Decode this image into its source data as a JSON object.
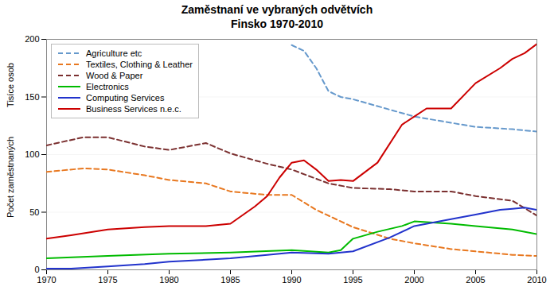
{
  "chart_data": {
    "type": "line",
    "title": "Zaměstnaní ve vybraných odvětvích",
    "subtitle": "Finsko 1970-2010",
    "ylabel": "Počet zaměstnaných",
    "annotations": [
      "Tisíce osob"
    ],
    "xlim": [
      1970,
      2010
    ],
    "xticks": [
      1970,
      1975,
      1980,
      1985,
      1990,
      1995,
      2000,
      2005,
      2010
    ],
    "ylim": [
      0,
      200
    ],
    "yticks": [
      0,
      50,
      100,
      150,
      200
    ],
    "grid": "y",
    "legend": "upper left",
    "series": [
      {
        "name": "Agriculture etc",
        "color": "#6699cc",
        "line_style": "dashed",
        "x": [
          1990,
          1991,
          1992,
          1993,
          1994,
          1995,
          2000,
          2005,
          2008,
          2010
        ],
        "values": [
          195,
          190,
          175,
          155,
          150,
          148,
          133,
          124,
          122,
          120
        ]
      },
      {
        "name": "Textiles, Clothing & Leather",
        "color": "#e87820",
        "line_style": "dashed",
        "x": [
          1970,
          1973,
          1975,
          1978,
          1980,
          1983,
          1985,
          1988,
          1990,
          1992,
          1995,
          1998,
          2000,
          2003,
          2005,
          2008,
          2010
        ],
        "values": [
          85,
          88,
          87,
          82,
          78,
          75,
          68,
          65,
          65,
          52,
          37,
          27,
          23,
          18,
          16,
          13,
          12
        ]
      },
      {
        "name": "Wood & Paper",
        "color": "#7b3030",
        "line_style": "dashed",
        "x": [
          1970,
          1973,
          1975,
          1978,
          1980,
          1983,
          1985,
          1988,
          1990,
          1993,
          1995,
          1998,
          2000,
          2003,
          2005,
          2008,
          2010
        ],
        "values": [
          108,
          115,
          115,
          107,
          104,
          110,
          101,
          92,
          87,
          75,
          71,
          70,
          68,
          68,
          64,
          60,
          47
        ]
      },
      {
        "name": "Electronics",
        "color": "#00bb00",
        "line_style": "solid",
        "x": [
          1970,
          1975,
          1980,
          1985,
          1990,
          1993,
          1994,
          1995,
          1997,
          1999,
          2000,
          2003,
          2005,
          2008,
          2010
        ],
        "values": [
          10,
          12,
          14,
          15,
          17,
          15,
          17,
          27,
          33,
          38,
          42,
          40,
          38,
          35,
          31
        ]
      },
      {
        "name": "Computing Services",
        "color": "#2233cc",
        "line_style": "solid",
        "x": [
          1970,
          1972,
          1975,
          1978,
          1980,
          1985,
          1988,
          1990,
          1993,
          1995,
          1998,
          2000,
          2003,
          2005,
          2007,
          2008,
          2009,
          2010
        ],
        "values": [
          1,
          1,
          3,
          5,
          7,
          10,
          13,
          15,
          14,
          16,
          28,
          38,
          44,
          48,
          52,
          53,
          54,
          52
        ]
      },
      {
        "name": "Business Services n.e.c.",
        "color": "#cc0000",
        "line_style": "solid",
        "x": [
          1970,
          1972,
          1975,
          1978,
          1980,
          1983,
          1985,
          1987,
          1988,
          1989,
          1990,
          1991,
          1992,
          1993,
          1994,
          1995,
          1997,
          1999,
          2000,
          2001,
          2002,
          2003,
          2005,
          2007,
          2008,
          2009,
          2010
        ],
        "values": [
          27,
          30,
          35,
          37,
          38,
          38,
          40,
          55,
          64,
          80,
          93,
          95,
          87,
          77,
          78,
          77,
          93,
          126,
          133,
          140,
          140,
          140,
          162,
          175,
          183,
          188,
          196
        ]
      }
    ]
  }
}
